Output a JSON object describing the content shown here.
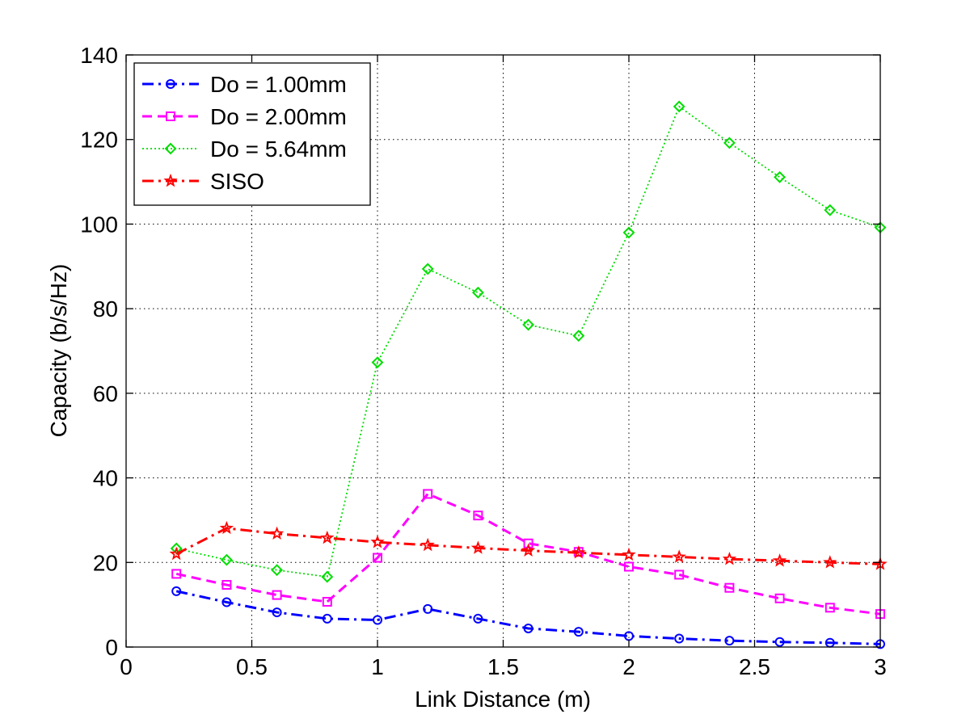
{
  "chart_data": {
    "type": "line",
    "xlabel": "Link Distance (m)",
    "ylabel": "Capacity (b/s/Hz)",
    "xlim": [
      0,
      3
    ],
    "ylim": [
      0,
      140
    ],
    "xticks": [
      "0",
      "0.5",
      "1",
      "1.5",
      "2",
      "2.5",
      "3"
    ],
    "yticks": [
      "0",
      "20",
      "40",
      "60",
      "80",
      "100",
      "120",
      "140"
    ],
    "grid": true,
    "legend_position": "top-left",
    "x": [
      0.2,
      0.4,
      0.6,
      0.8,
      1.0,
      1.2,
      1.4,
      1.6,
      1.8,
      2.0,
      2.2,
      2.4,
      2.6,
      2.8,
      3.0
    ],
    "series": [
      {
        "name": "Do = 1.00mm",
        "color": "#0000ff",
        "line_style": "dash-dot",
        "marker": "circle",
        "values": [
          13.2,
          10.6,
          8.2,
          6.7,
          6.4,
          9.0,
          6.7,
          4.4,
          3.6,
          2.6,
          2.0,
          1.5,
          1.2,
          1.0,
          0.7
        ]
      },
      {
        "name": "Do = 2.00mm",
        "color": "#ff00ff",
        "line_style": "dashed",
        "marker": "square",
        "values": [
          17.3,
          14.7,
          12.3,
          10.7,
          21.1,
          36.2,
          31.1,
          24.5,
          22.5,
          19.0,
          17.1,
          14.0,
          11.5,
          9.3,
          7.8
        ]
      },
      {
        "name": "Do = 5.64mm",
        "color": "#00dd00",
        "line_style": "dotted",
        "marker": "diamond",
        "values": [
          23.3,
          20.6,
          18.2,
          16.6,
          67.3,
          89.4,
          83.8,
          76.2,
          73.6,
          98.0,
          127.8,
          119.2,
          111.1,
          103.3,
          99.2
        ]
      },
      {
        "name": "SISO",
        "color": "#ff0000",
        "line_style": "dash-dot",
        "marker": "star",
        "values": [
          22.0,
          28.1,
          26.8,
          25.8,
          24.8,
          24.1,
          23.4,
          22.8,
          22.3,
          21.8,
          21.3,
          20.8,
          20.4,
          20.0,
          19.6
        ]
      }
    ]
  }
}
